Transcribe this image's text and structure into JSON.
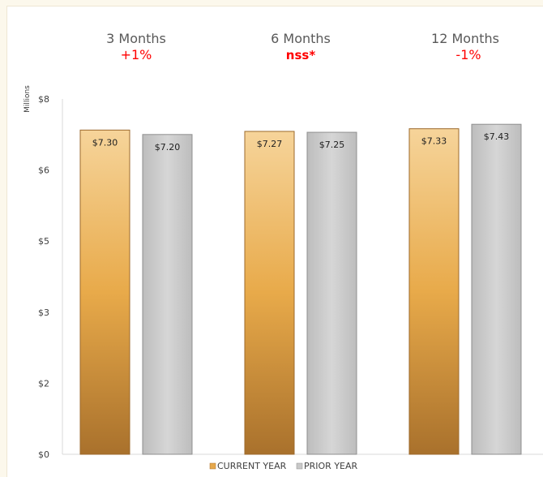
{
  "chart_data": {
    "type": "bar",
    "title": "",
    "xlabel": "",
    "ylabel": "Millions",
    "ylim": [
      0,
      8
    ],
    "y_ticks": [
      {
        "value": 0,
        "label": "$0"
      },
      {
        "value": 1.6,
        "label": "$2"
      },
      {
        "value": 3.2,
        "label": "$3"
      },
      {
        "value": 4.8,
        "label": "$5"
      },
      {
        "value": 6.4,
        "label": "$6"
      },
      {
        "value": 8,
        "label": "$8"
      }
    ],
    "grid": false,
    "categories": [
      "3 Months",
      "6 Months",
      "12 Months"
    ],
    "changes": [
      "+1%",
      "nss*",
      "-1%"
    ],
    "series": [
      {
        "name": "CURRENT YEAR",
        "values": [
          7.3,
          7.27,
          7.33
        ],
        "labels": [
          "$7.30",
          "$7.27",
          "$7.33"
        ],
        "color": "#e6a84c"
      },
      {
        "name": "PRIOR YEAR",
        "values": [
          7.2,
          7.25,
          7.43
        ],
        "labels": [
          "$7.20",
          "$7.25",
          "$7.43"
        ],
        "color": "#c8c8c8"
      }
    ],
    "legend_position": "bottom"
  },
  "colors": {
    "change": "#ff0000",
    "background": "#fcf8ec"
  }
}
